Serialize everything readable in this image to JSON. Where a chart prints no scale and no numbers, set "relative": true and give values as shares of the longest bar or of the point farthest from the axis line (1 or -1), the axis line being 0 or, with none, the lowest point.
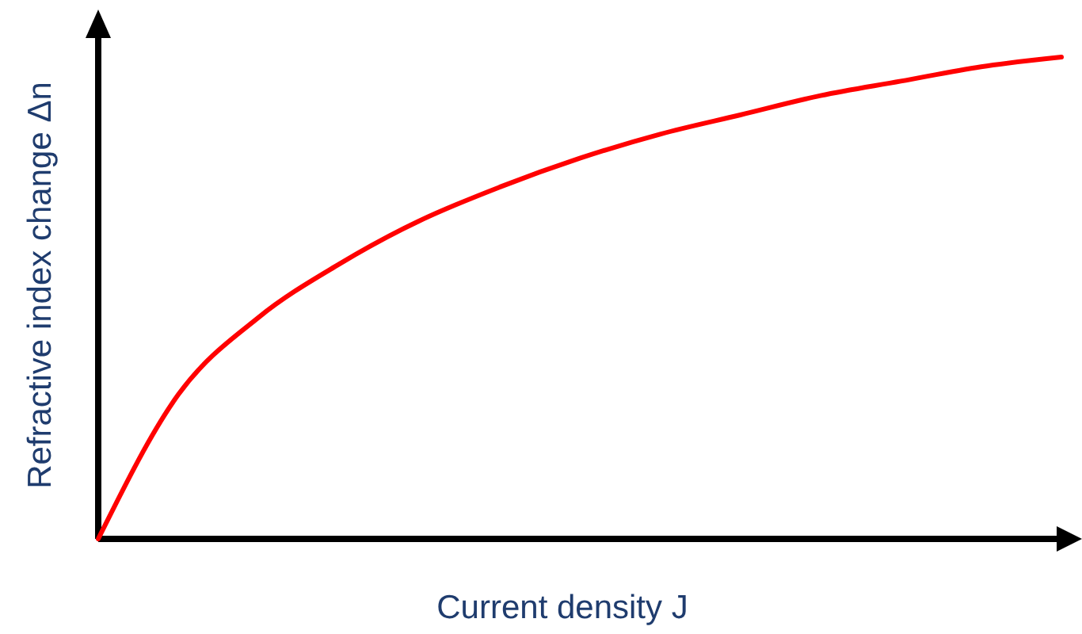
{
  "chart_data": {
    "type": "line",
    "relative": true,
    "xlabel": "Current density  J",
    "ylabel": "Refractive index change  Δn",
    "categories": [
      null,
      null,
      null,
      null,
      null,
      null,
      null,
      null,
      null,
      null,
      null,
      null,
      null
    ],
    "series": [
      {
        "color": "#ff0000",
        "values": [
          0,
          0.3,
          0.46,
          0.57,
          0.66,
          0.73,
          0.79,
          0.84,
          0.88,
          0.92,
          0.95,
          0.98,
          1
        ]
      }
    ],
    "marker": "none",
    "line_style": "solid"
  }
}
